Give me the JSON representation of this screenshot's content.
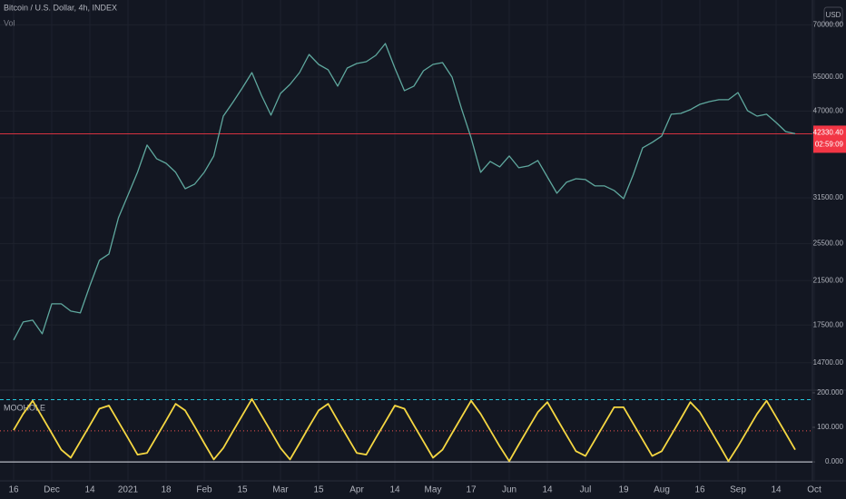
{
  "chart_data": [
    {
      "type": "line",
      "title": "Bitcoin / U.S. Dollar, 4h, INDEX",
      "volume_label": "Vol",
      "currency": "USD",
      "categories": [
        "16",
        null,
        null,
        null,
        "Dec",
        null,
        null,
        null,
        "14",
        null,
        null,
        null,
        "2021",
        null,
        null,
        null,
        "18",
        null,
        null,
        null,
        "Feb",
        null,
        null,
        null,
        "15",
        null,
        null,
        null,
        "Mar",
        null,
        null,
        null,
        "15",
        null,
        null,
        null,
        "Apr",
        null,
        null,
        null,
        "14",
        null,
        null,
        null,
        "May",
        null,
        null,
        null,
        "17",
        null,
        null,
        null,
        "Jun",
        null,
        null,
        null,
        "14",
        null,
        null,
        null,
        "Jul",
        null,
        null,
        null,
        "19",
        null,
        null,
        null,
        "Aug",
        null,
        null,
        null,
        "16",
        null,
        null,
        null,
        "Sep",
        null,
        null,
        null,
        "14",
        null,
        null,
        null,
        "Oct"
      ],
      "values": [
        16330,
        17750,
        17900,
        16810,
        19300,
        19300,
        18670,
        18510,
        20990,
        23600,
        24300,
        28730,
        31900,
        35430,
        40170,
        37730,
        36940,
        35430,
        32850,
        33550,
        35430,
        38200,
        45930,
        48910,
        52300,
        56150,
        50570,
        46130,
        51000,
        53180,
        56150,
        61060,
        58310,
        56870,
        52740,
        57340,
        58550,
        59050,
        60800,
        64200,
        57340,
        51650,
        52740,
        56630,
        58310,
        58800,
        54990,
        47490,
        41540,
        35430,
        37260,
        36330,
        38200,
        36180,
        36480,
        37410,
        34690,
        32170,
        33830,
        34400,
        34260,
        33270,
        33270,
        32580,
        31370,
        34990,
        39670,
        40680,
        41890,
        46320,
        46510,
        47300,
        48500,
        49110,
        49530,
        49530,
        51210,
        47100,
        45930,
        46320,
        44600,
        42770,
        42330,
        null,
        null
      ],
      "color": "#5fa89e",
      "log_scale": true,
      "grid": true,
      "ylim": [
        12960,
        78500
      ],
      "yticks": [
        {
          "value": 70000,
          "label": "70000.00"
        },
        {
          "value": 55000,
          "label": "55000.00"
        },
        {
          "value": 47000,
          "label": "47000.00"
        },
        {
          "value": 31500,
          "label": "31500.00"
        },
        {
          "value": 25500,
          "label": "25500.00"
        },
        {
          "value": 21500,
          "label": "21500.00"
        },
        {
          "value": 17500,
          "label": "17500.00"
        },
        {
          "value": 14700,
          "label": "14700.00"
        }
      ],
      "last_price": {
        "value": 42330.4,
        "label": "42330.40"
      },
      "countdown": "02:59:09",
      "last_price_color": "#f23645"
    },
    {
      "type": "line",
      "title": "MOOHOLE",
      "values": [
        92,
        139,
        177,
        130,
        83,
        35,
        12,
        59,
        106,
        154,
        163,
        116,
        69,
        21,
        26,
        73,
        120,
        168,
        149,
        102,
        54,
        7,
        40,
        88,
        135,
        182,
        135,
        88,
        40,
        7,
        54,
        102,
        149,
        168,
        120,
        73,
        26,
        21,
        69,
        116,
        163,
        154,
        106,
        59,
        12,
        35,
        83,
        130,
        177,
        139,
        92,
        45,
        2,
        50,
        97,
        144,
        173,
        125,
        78,
        31,
        17,
        64,
        111,
        158,
        158,
        111,
        64,
        17,
        31,
        78,
        125,
        173,
        144,
        97,
        50,
        2,
        45,
        92,
        139,
        177,
        130,
        83,
        35,
        null,
        null
      ],
      "color": "#f5d742",
      "ylim": [
        -55,
        213
      ],
      "yticks": [
        {
          "value": 200,
          "label": "200.000"
        },
        {
          "value": 100,
          "label": "100.000"
        },
        {
          "value": 0,
          "label": "0.000"
        }
      ],
      "levels": [
        {
          "value": 180,
          "color": "#26c6da",
          "style": "dashed"
        },
        {
          "value": 90,
          "color": "#ef5350",
          "style": "dotted"
        },
        {
          "value": 0,
          "color": "#e0e3eb",
          "style": "solid"
        }
      ]
    }
  ]
}
